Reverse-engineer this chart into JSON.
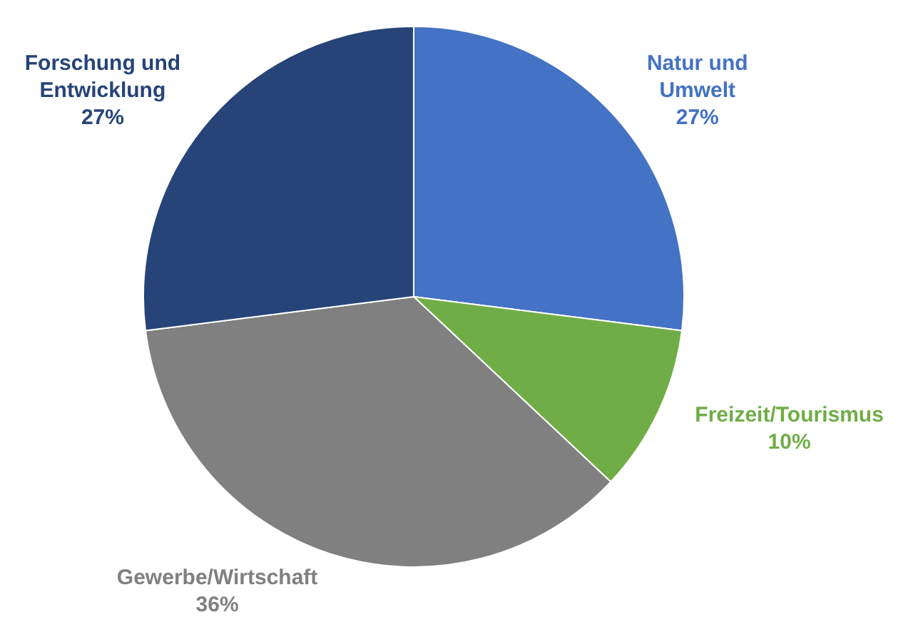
{
  "chart_data": {
    "type": "pie",
    "categories": [
      "Natur und Umwelt",
      "Freizeit/Tourismus",
      "Gewerbe/Wirtschaft",
      "Forschung und Entwicklung"
    ],
    "values": [
      27,
      10,
      36,
      27
    ],
    "value_labels": [
      "27%",
      "10%",
      "36%",
      "27%"
    ],
    "colors": [
      "#4472c4",
      "#70ad47",
      "#808080",
      "#264478"
    ]
  }
}
